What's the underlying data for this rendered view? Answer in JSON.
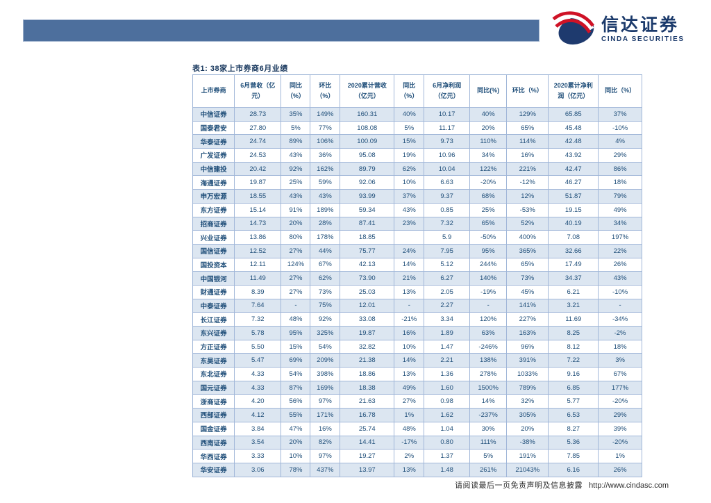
{
  "brand": {
    "logo_cn": "信达证券",
    "logo_en": "CINDA SECURITIES"
  },
  "colors": {
    "banner_blue": "#4d6f9d",
    "logo_navy": "#1b3a6b",
    "logo_red": "#cf1226",
    "table_text_navy": "#1f4e79",
    "row_alt_blue": "#dce6f1",
    "table_border": "#a0b6d8"
  },
  "table_title": "表1: 38家上市券商6月业绩",
  "table": {
    "headers": [
      "上市券商",
      "6月营收（亿元）",
      "同比（%）",
      "环比（%）",
      "2020累计营收（亿元）",
      "同比（%）",
      "6月净利润（亿元）",
      "同比(%)",
      "环比（%）",
      "2020累计净利润（亿元）",
      "同比（%）"
    ],
    "rows": [
      [
        "中信证券",
        "28.73",
        "35%",
        "149%",
        "160.31",
        "40%",
        "10.17",
        "40%",
        "129%",
        "65.85",
        "37%"
      ],
      [
        "国泰君安",
        "27.80",
        "5%",
        "77%",
        "108.08",
        "5%",
        "11.17",
        "20%",
        "65%",
        "45.48",
        "-10%"
      ],
      [
        "华泰证券",
        "24.74",
        "89%",
        "106%",
        "100.09",
        "15%",
        "9.73",
        "110%",
        "114%",
        "42.48",
        "4%"
      ],
      [
        "广发证券",
        "24.53",
        "43%",
        "36%",
        "95.08",
        "19%",
        "10.96",
        "34%",
        "16%",
        "43.92",
        "29%"
      ],
      [
        "中信建投",
        "20.42",
        "92%",
        "162%",
        "89.79",
        "62%",
        "10.04",
        "122%",
        "221%",
        "42.47",
        "86%"
      ],
      [
        "海通证券",
        "19.87",
        "25%",
        "59%",
        "92.06",
        "10%",
        "6.63",
        "-20%",
        "-12%",
        "46.27",
        "18%"
      ],
      [
        "申万宏源",
        "18.55",
        "43%",
        "43%",
        "93.99",
        "37%",
        "9.37",
        "68%",
        "12%",
        "51.87",
        "79%"
      ],
      [
        "东方证券",
        "15.14",
        "91%",
        "189%",
        "59.34",
        "43%",
        "0.85",
        "25%",
        "-53%",
        "19.15",
        "49%"
      ],
      [
        "招商证券",
        "14.73",
        "20%",
        "28%",
        "87.41",
        "23%",
        "7.32",
        "65%",
        "52%",
        "40.19",
        "34%"
      ],
      [
        "兴业证券",
        "13.86",
        "80%",
        "178%",
        "18.85",
        "",
        "5.9",
        "-50%",
        "400%",
        "7.08",
        "197%"
      ],
      [
        "国信证券",
        "12.52",
        "27%",
        "44%",
        "75.77",
        "24%",
        "7.95",
        "95%",
        "365%",
        "32.66",
        "22%"
      ],
      [
        "国投资本",
        "12.11",
        "124%",
        "67%",
        "42.13",
        "14%",
        "5.12",
        "244%",
        "65%",
        "17.49",
        "26%"
      ],
      [
        "中国银河",
        "11.49",
        "27%",
        "62%",
        "73.90",
        "21%",
        "6.27",
        "140%",
        "73%",
        "34.37",
        "43%"
      ],
      [
        "财通证券",
        "8.39",
        "27%",
        "73%",
        "25.03",
        "13%",
        "2.05",
        "-19%",
        "45%",
        "6.21",
        "-10%"
      ],
      [
        "中泰证券",
        "7.64",
        "-",
        "75%",
        "12.01",
        "-",
        "2.27",
        "-",
        "141%",
        "3.21",
        "-"
      ],
      [
        "长江证券",
        "7.32",
        "48%",
        "92%",
        "33.08",
        "-21%",
        "3.34",
        "120%",
        "227%",
        "11.69",
        "-34%"
      ],
      [
        "东兴证券",
        "5.78",
        "95%",
        "325%",
        "19.87",
        "16%",
        "1.89",
        "63%",
        "163%",
        "8.25",
        "-2%"
      ],
      [
        "方正证券",
        "5.50",
        "15%",
        "54%",
        "32.82",
        "10%",
        "1.47",
        "-246%",
        "96%",
        "8.12",
        "18%"
      ],
      [
        "东吴证券",
        "5.47",
        "69%",
        "209%",
        "21.38",
        "14%",
        "2.21",
        "138%",
        "391%",
        "7.22",
        "3%"
      ],
      [
        "东北证券",
        "4.33",
        "54%",
        "398%",
        "18.86",
        "13%",
        "1.36",
        "278%",
        "1033%",
        "9.16",
        "67%"
      ],
      [
        "国元证券",
        "4.33",
        "87%",
        "169%",
        "18.38",
        "49%",
        "1.60",
        "1500%",
        "789%",
        "6.85",
        "177%"
      ],
      [
        "浙商证券",
        "4.20",
        "56%",
        "97%",
        "21.63",
        "27%",
        "0.98",
        "14%",
        "32%",
        "5.77",
        "-20%"
      ],
      [
        "西部证券",
        "4.12",
        "55%",
        "171%",
        "16.78",
        "1%",
        "1.62",
        "-237%",
        "305%",
        "6.53",
        "29%"
      ],
      [
        "国金证券",
        "3.84",
        "47%",
        "16%",
        "25.74",
        "48%",
        "1.04",
        "30%",
        "20%",
        "8.27",
        "39%"
      ],
      [
        "西南证券",
        "3.54",
        "20%",
        "82%",
        "14.41",
        "-17%",
        "0.80",
        "111%",
        "-38%",
        "5.36",
        "-20%"
      ],
      [
        "华西证券",
        "3.33",
        "10%",
        "97%",
        "19.27",
        "2%",
        "1.37",
        "5%",
        "191%",
        "7.85",
        "1%"
      ],
      [
        "华安证券",
        "3.06",
        "78%",
        "437%",
        "13.97",
        "13%",
        "1.48",
        "261%",
        "21043%",
        "6.16",
        "26%"
      ]
    ]
  },
  "footer": {
    "disclaimer": "请阅读最后一页免责声明及信息披露",
    "url": "http://www.cindasc.com"
  }
}
